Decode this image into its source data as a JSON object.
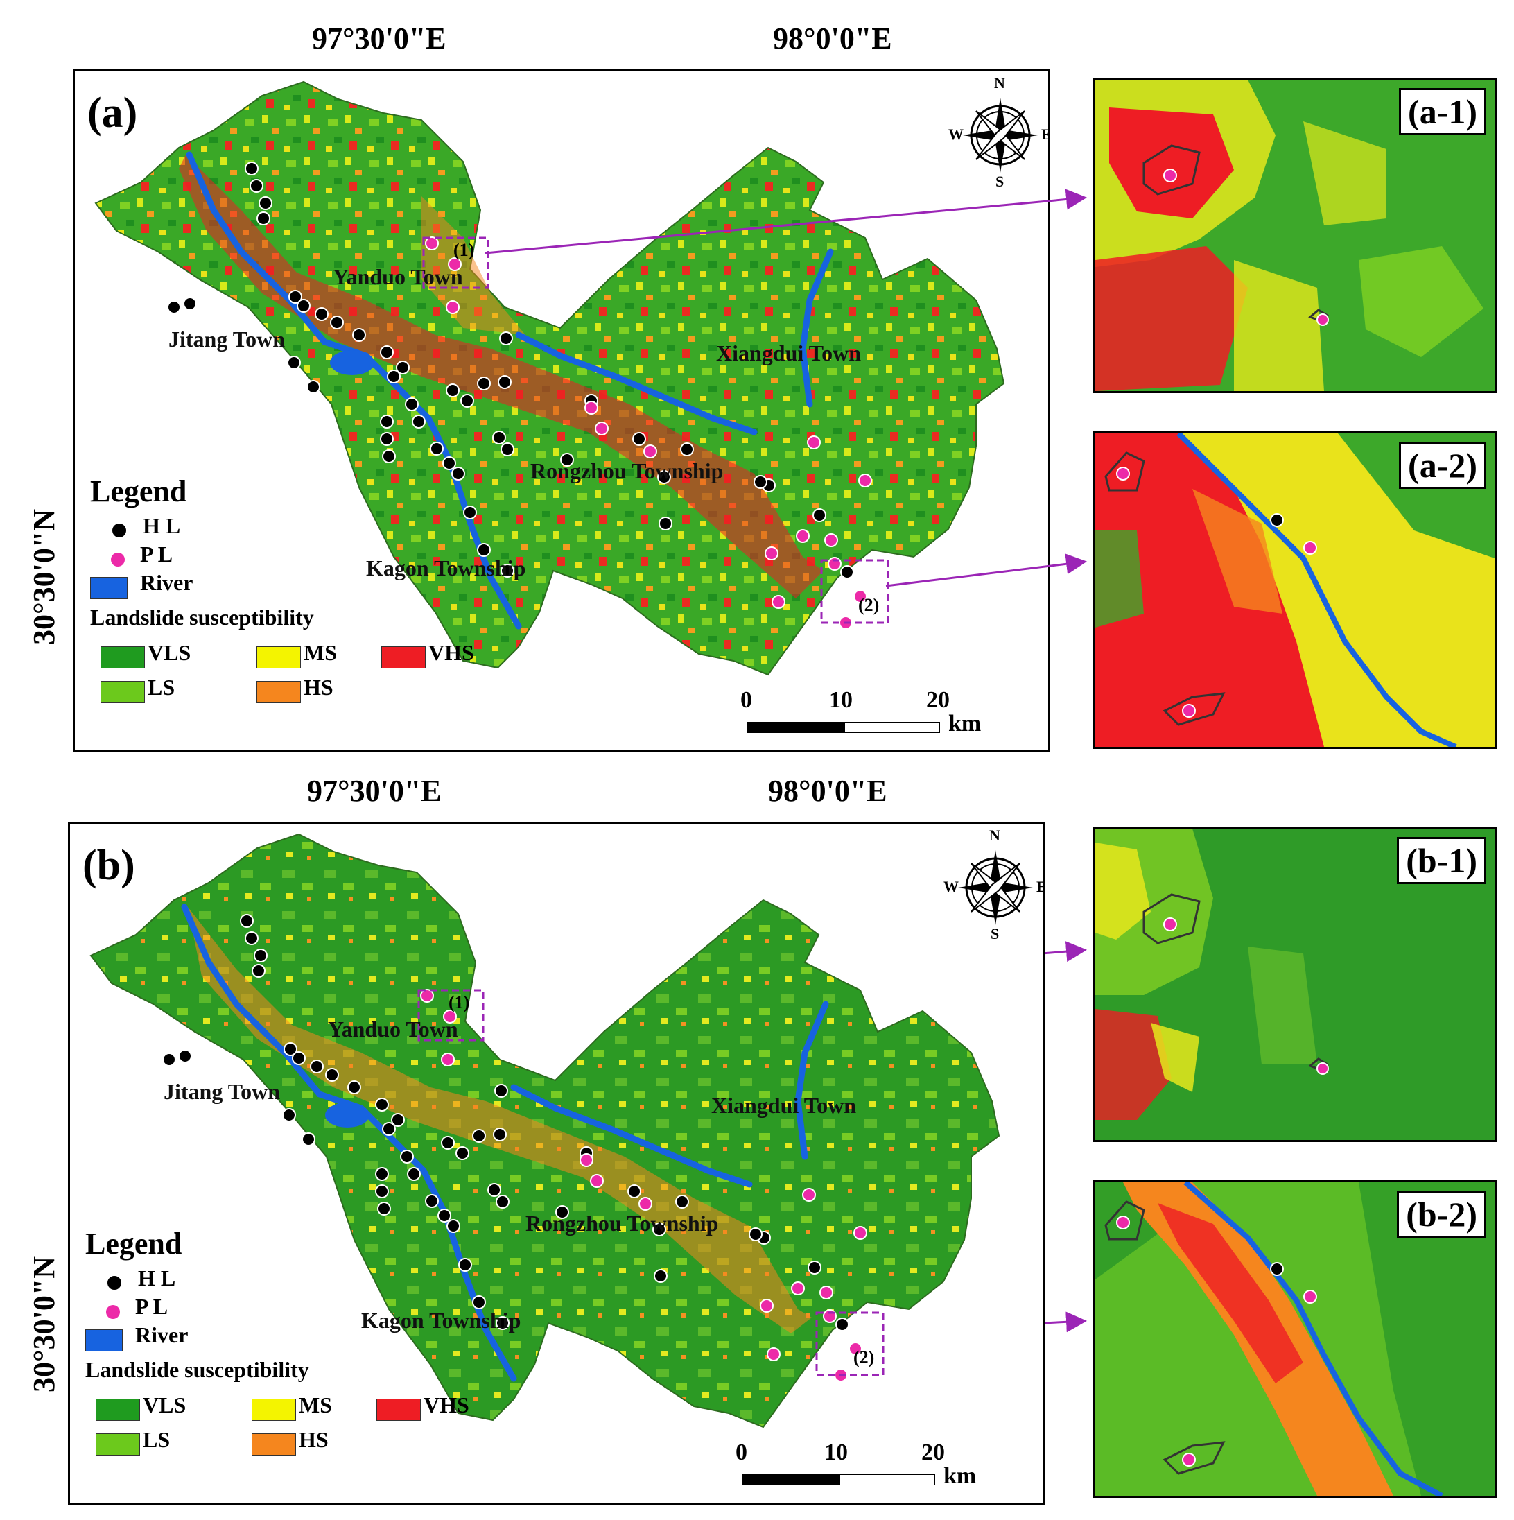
{
  "colors": {
    "VLS": "#1f9b1f",
    "LS": "#6cc91c",
    "MS": "#f4f400",
    "HS": "#f5861e",
    "VHS": "#ee1d24",
    "river": "#1763e0",
    "historical": "#000000",
    "potential": "#ec2aa8",
    "leader": "#9b25b6"
  },
  "coordinates": {
    "lon1": "97°30'0\"E",
    "lon2": "98°0'0\"E",
    "lat": "30°30'0\"N"
  },
  "panel_a": {
    "label": "(a)",
    "inset_1": "(a-1)",
    "inset_2": "(a-2)",
    "box_1": "(1)",
    "box_2": "(2)"
  },
  "panel_b": {
    "label": "(b)",
    "inset_1": "(b-1)",
    "inset_2": "(b-2)",
    "box_1": "(1)",
    "box_2": "(2)"
  },
  "places": {
    "yanduo": "Yanduo Town",
    "jitang": "Jitang Town",
    "xiangdui": "Xiangdui Town",
    "rongzhou": "Rongzhou Township",
    "kagon": "Kagon Township"
  },
  "compass": {
    "n": "N",
    "s": "S",
    "e": "E",
    "w": "W"
  },
  "legend": {
    "title": "Legend",
    "hl": "H L",
    "pl": "P L",
    "river": "River",
    "susceptibility": "Landslide susceptibility",
    "vls": "VLS",
    "ls": "LS",
    "ms": "MS",
    "hs": "HS",
    "vhs": "VHS"
  },
  "scale_bar": {
    "t0": "0",
    "t10": "10",
    "t20": "20",
    "unit": "km"
  }
}
